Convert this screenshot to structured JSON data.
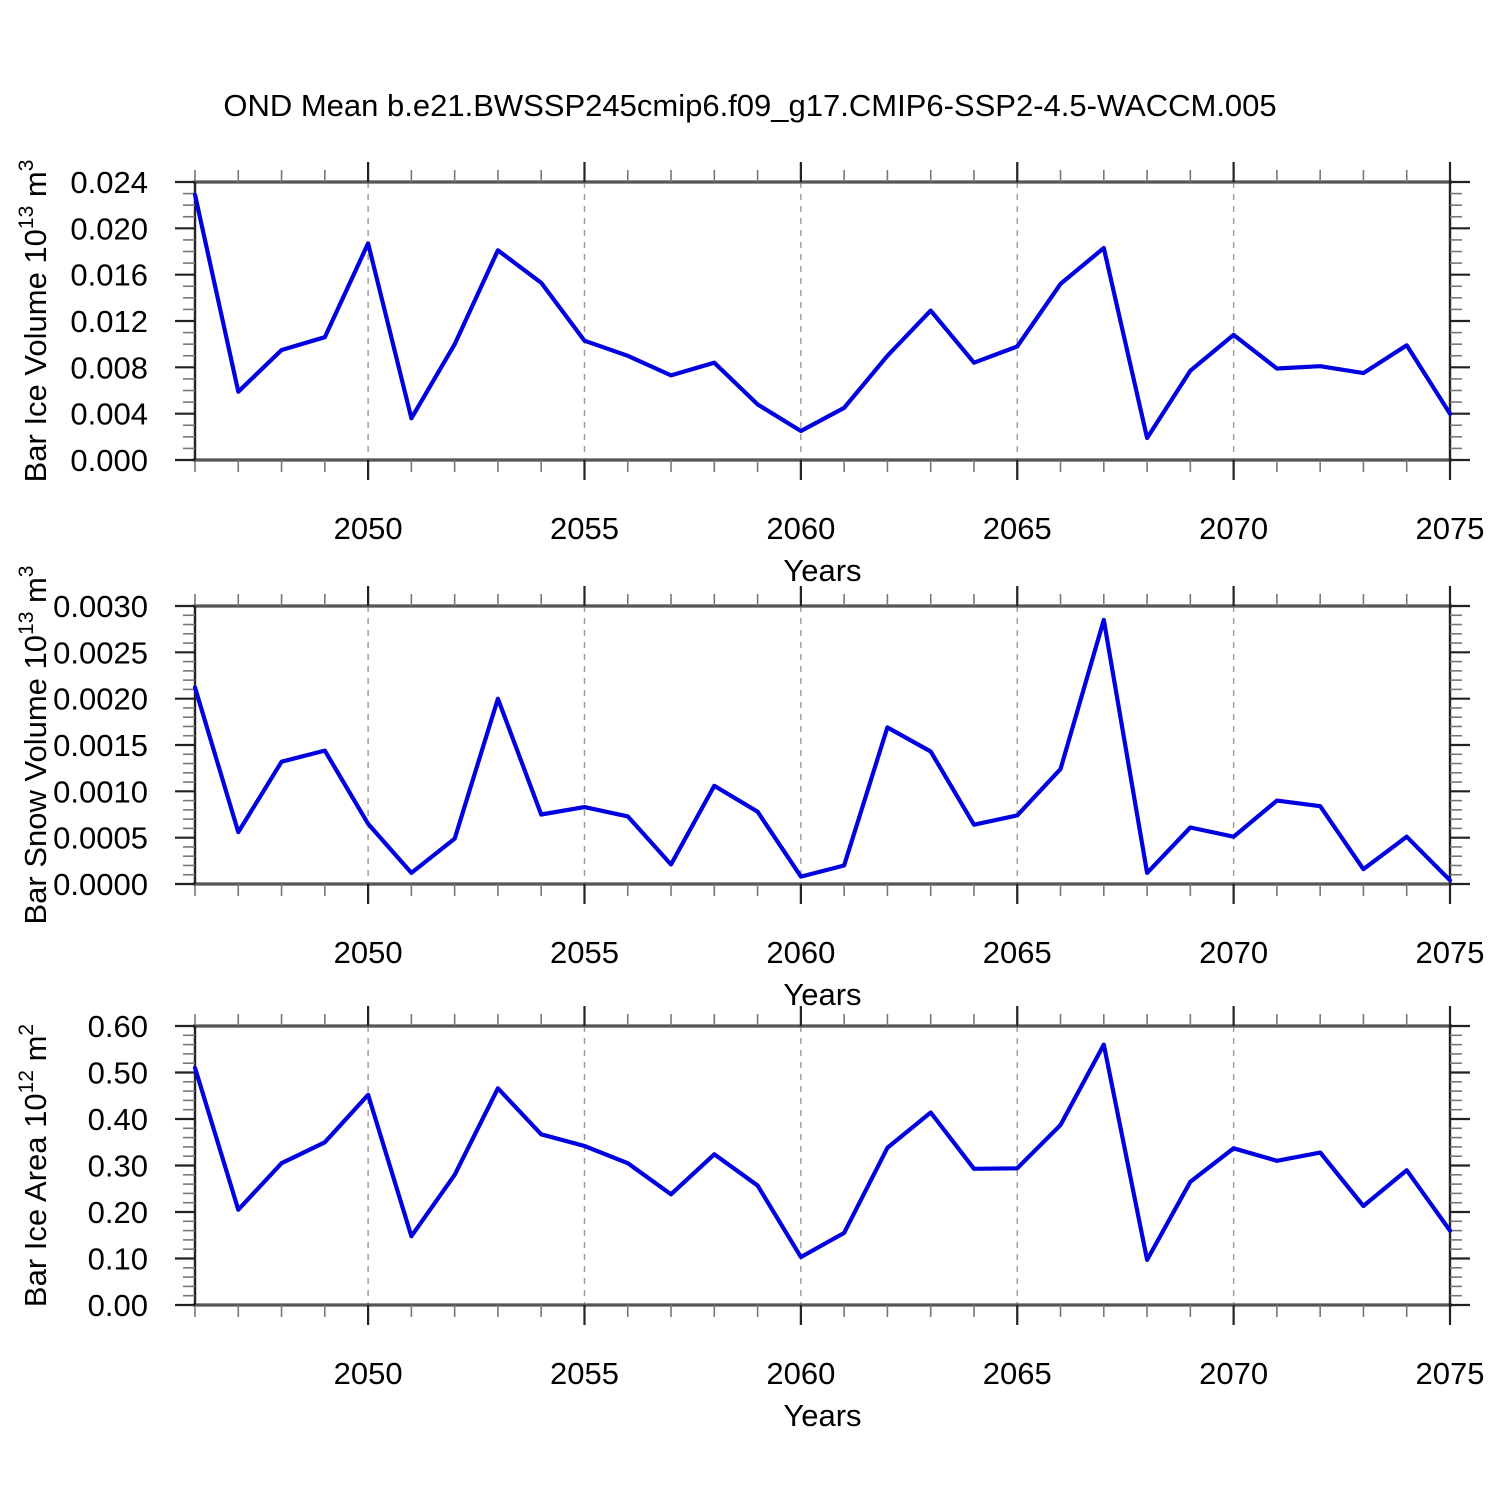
{
  "title": "OND Mean b.e21.BWSSP245cmip6.f09_g17.CMIP6-SSP2-4.5-WACCM.005",
  "colors": {
    "line": "#0000e0",
    "grid": "#999999",
    "frame": "#555555",
    "tick_major": "#222222",
    "tick_minor": "#777777",
    "text": "#000000",
    "background": "#ffffff"
  },
  "x_axis": {
    "label": "Years",
    "range": [
      2046,
      2075
    ],
    "major_ticks": [
      "2050",
      "2055",
      "2060",
      "2065",
      "2070",
      "2075"
    ],
    "gridline_years": [
      2050,
      2055,
      2060,
      2065,
      2070
    ],
    "minor_step": 1
  },
  "years": [
    2046,
    2047,
    2048,
    2049,
    2050,
    2051,
    2052,
    2053,
    2054,
    2055,
    2056,
    2057,
    2058,
    2059,
    2060,
    2061,
    2062,
    2063,
    2064,
    2065,
    2066,
    2067,
    2068,
    2069,
    2070,
    2071,
    2072,
    2073,
    2074,
    2075
  ],
  "chart_data": [
    {
      "type": "line",
      "name": "bar-ice-volume",
      "title": "",
      "xlabel": "Years",
      "ylabel": {
        "base": "Bar Ice Volume 10",
        "exp": "13",
        "unit": " m",
        "unit_exp": "3"
      },
      "ylim": [
        0,
        0.024
      ],
      "ytick_labels": [
        "0.000",
        "0.004",
        "0.008",
        "0.012",
        "0.016",
        "0.020",
        "0.024"
      ],
      "y_minor_step": 0.001,
      "grid": "vertical-dashed",
      "legend": null,
      "values": [
        0.0229,
        0.0059,
        0.0095,
        0.0106,
        0.0187,
        0.0036,
        0.01,
        0.0181,
        0.0153,
        0.0103,
        0.009,
        0.0073,
        0.0084,
        0.0048,
        0.0025,
        0.0045,
        0.009,
        0.0129,
        0.0084,
        0.0098,
        0.0152,
        0.0183,
        0.0019,
        0.0077,
        0.0108,
        0.0079,
        0.0081,
        0.0075,
        0.0099,
        0.004
      ]
    },
    {
      "type": "line",
      "name": "bar-snow-volume",
      "title": "",
      "xlabel": "Years",
      "ylabel": {
        "base": "Bar Snow Volume 10",
        "exp": "13",
        "unit": " m",
        "unit_exp": "3"
      },
      "ylim": [
        0,
        0.003
      ],
      "ytick_labels": [
        "0.0000",
        "0.0005",
        "0.0010",
        "0.0015",
        "0.0020",
        "0.0025",
        "0.0030"
      ],
      "y_minor_step": 0.0001,
      "grid": "vertical-dashed",
      "legend": null,
      "values": [
        0.00212,
        0.00056,
        0.00132,
        0.00144,
        0.00065,
        0.00012,
        0.00049,
        0.002,
        0.00075,
        0.00083,
        0.00073,
        0.00021,
        0.00106,
        0.00078,
        8e-05,
        0.0002,
        0.00169,
        0.00143,
        0.00064,
        0.00074,
        0.00124,
        0.00285,
        0.00012,
        0.00061,
        0.00051,
        0.0009,
        0.00084,
        0.00016,
        0.00051,
        4e-05
      ]
    },
    {
      "type": "line",
      "name": "bar-ice-area",
      "title": "",
      "xlabel": "Years",
      "ylabel": {
        "base": "Bar Ice Area 10",
        "exp": "12",
        "unit": " m",
        "unit_exp": "2"
      },
      "ylim": [
        0,
        0.6
      ],
      "ytick_labels": [
        "0.00",
        "0.10",
        "0.20",
        "0.30",
        "0.40",
        "0.50",
        "0.60"
      ],
      "y_minor_step": 0.02,
      "grid": "vertical-dashed",
      "legend": null,
      "values": [
        0.51,
        0.205,
        0.305,
        0.35,
        0.452,
        0.148,
        0.28,
        0.466,
        0.367,
        0.342,
        0.305,
        0.238,
        0.324,
        0.257,
        0.103,
        0.155,
        0.338,
        0.414,
        0.293,
        0.294,
        0.387,
        0.56,
        0.097,
        0.265,
        0.337,
        0.31,
        0.328,
        0.213,
        0.29,
        0.16
      ]
    }
  ]
}
